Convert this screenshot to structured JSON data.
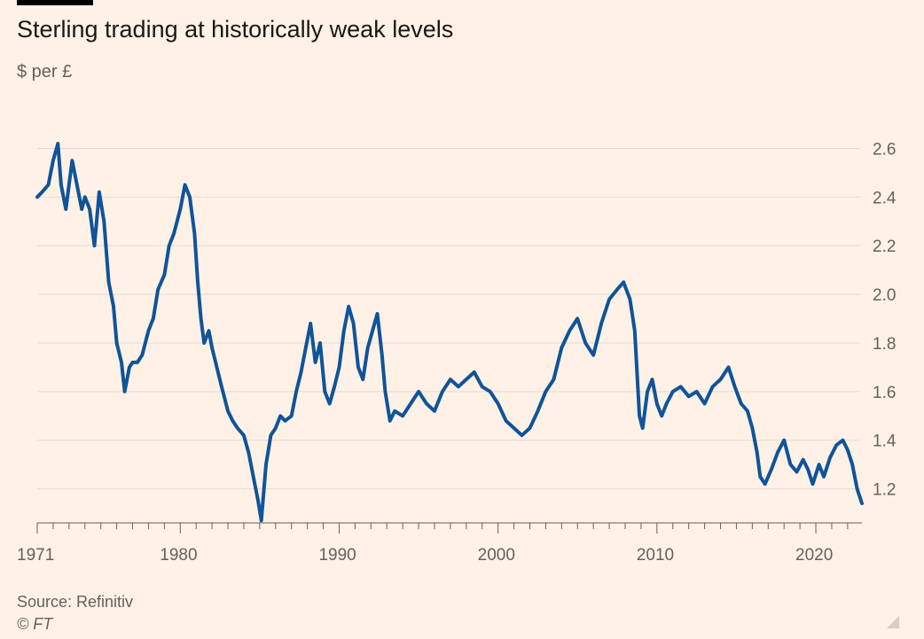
{
  "header": {
    "title": "Sterling trading at historically weak levels",
    "subtitle": "$ per £"
  },
  "footer": {
    "source": "Source: Refinitiv",
    "copyright": "© FT"
  },
  "colors": {
    "background": "#fff1e5",
    "line": "#0f5499",
    "grid": "#e6d9ce",
    "axis": "#66605c"
  },
  "chart_data": {
    "type": "line",
    "title": "Sterling trading at historically weak levels",
    "ylabel": "$ per £",
    "xlabel": "",
    "xlim": [
      1971,
      2022.9
    ],
    "ylim": [
      1.06,
      2.7
    ],
    "y_axis_position": "right",
    "grid": "horizontal",
    "x_ticks": [
      1971,
      1980,
      1990,
      2000,
      2010,
      2020
    ],
    "x_tick_labels": [
      "1971",
      "1980",
      "1990",
      "2000",
      "2010",
      "2020"
    ],
    "y_ticks": [
      1.2,
      1.4,
      1.6,
      1.8,
      2.0,
      2.2,
      2.4,
      2.6
    ],
    "y_tick_labels": [
      "1.2",
      "1.4",
      "1.6",
      "1.8",
      "2.0",
      "2.2",
      "2.4",
      "2.6"
    ],
    "series": [
      {
        "x": [
          1971.0,
          1971.3,
          1971.7,
          1972.0,
          1972.3,
          1972.5,
          1972.8,
          1973.0,
          1973.2,
          1973.5,
          1973.8,
          1974.0,
          1974.3,
          1974.6,
          1974.9,
          1975.2,
          1975.5,
          1975.8,
          1976.0,
          1976.3,
          1976.5,
          1976.8,
          1977.0,
          1977.3,
          1977.6,
          1978.0,
          1978.3,
          1978.6,
          1979.0,
          1979.3,
          1979.6,
          1980.0,
          1980.3,
          1980.6,
          1980.9,
          1981.1,
          1981.3,
          1981.5,
          1981.8,
          1982.0,
          1982.3,
          1982.6,
          1983.0,
          1983.3,
          1983.6,
          1984.0,
          1984.3,
          1984.6,
          1984.9,
          1985.1,
          1985.4,
          1985.7,
          1986.0,
          1986.3,
          1986.6,
          1987.0,
          1987.3,
          1987.6,
          1987.9,
          1988.2,
          1988.5,
          1988.8,
          1989.1,
          1989.4,
          1989.7,
          1990.0,
          1990.3,
          1990.6,
          1990.9,
          1991.2,
          1991.5,
          1991.8,
          1992.1,
          1992.4,
          1992.7,
          1992.9,
          1993.2,
          1993.5,
          1994.0,
          1994.5,
          1995.0,
          1995.5,
          1996.0,
          1996.5,
          1997.0,
          1997.5,
          1998.0,
          1998.5,
          1999.0,
          1999.5,
          2000.0,
          2000.5,
          2001.0,
          2001.5,
          2002.0,
          2002.5,
          2003.0,
          2003.5,
          2004.0,
          2004.5,
          2005.0,
          2005.5,
          2006.0,
          2006.5,
          2007.0,
          2007.5,
          2007.9,
          2008.3,
          2008.6,
          2008.9,
          2009.1,
          2009.4,
          2009.7,
          2010.0,
          2010.3,
          2010.6,
          2011.0,
          2011.5,
          2012.0,
          2012.5,
          2013.0,
          2013.5,
          2014.0,
          2014.5,
          2014.9,
          2015.3,
          2015.7,
          2016.0,
          2016.3,
          2016.5,
          2016.8,
          2017.2,
          2017.6,
          2018.0,
          2018.4,
          2018.8,
          2019.2,
          2019.5,
          2019.8,
          2020.2,
          2020.5,
          2020.9,
          2021.3,
          2021.7,
          2022.0,
          2022.3,
          2022.6,
          2022.9
        ],
        "values": [
          2.4,
          2.42,
          2.45,
          2.55,
          2.62,
          2.45,
          2.35,
          2.45,
          2.55,
          2.45,
          2.35,
          2.4,
          2.35,
          2.2,
          2.42,
          2.3,
          2.05,
          1.95,
          1.8,
          1.72,
          1.6,
          1.7,
          1.72,
          1.72,
          1.75,
          1.85,
          1.9,
          2.02,
          2.08,
          2.2,
          2.25,
          2.35,
          2.45,
          2.4,
          2.25,
          2.05,
          1.9,
          1.8,
          1.85,
          1.78,
          1.7,
          1.62,
          1.52,
          1.48,
          1.45,
          1.42,
          1.35,
          1.25,
          1.15,
          1.07,
          1.3,
          1.42,
          1.45,
          1.5,
          1.48,
          1.5,
          1.6,
          1.68,
          1.78,
          1.88,
          1.72,
          1.8,
          1.6,
          1.55,
          1.62,
          1.7,
          1.85,
          1.95,
          1.88,
          1.7,
          1.65,
          1.78,
          1.85,
          1.92,
          1.75,
          1.6,
          1.48,
          1.52,
          1.5,
          1.55,
          1.6,
          1.55,
          1.52,
          1.6,
          1.65,
          1.62,
          1.65,
          1.68,
          1.62,
          1.6,
          1.55,
          1.48,
          1.45,
          1.42,
          1.45,
          1.52,
          1.6,
          1.65,
          1.78,
          1.85,
          1.9,
          1.8,
          1.75,
          1.88,
          1.98,
          2.02,
          2.05,
          1.98,
          1.85,
          1.5,
          1.45,
          1.6,
          1.65,
          1.55,
          1.5,
          1.55,
          1.6,
          1.62,
          1.58,
          1.6,
          1.55,
          1.62,
          1.65,
          1.7,
          1.62,
          1.55,
          1.52,
          1.45,
          1.35,
          1.25,
          1.22,
          1.28,
          1.35,
          1.4,
          1.3,
          1.27,
          1.32,
          1.28,
          1.22,
          1.3,
          1.25,
          1.33,
          1.38,
          1.4,
          1.36,
          1.3,
          1.2,
          1.14
        ]
      }
    ]
  }
}
